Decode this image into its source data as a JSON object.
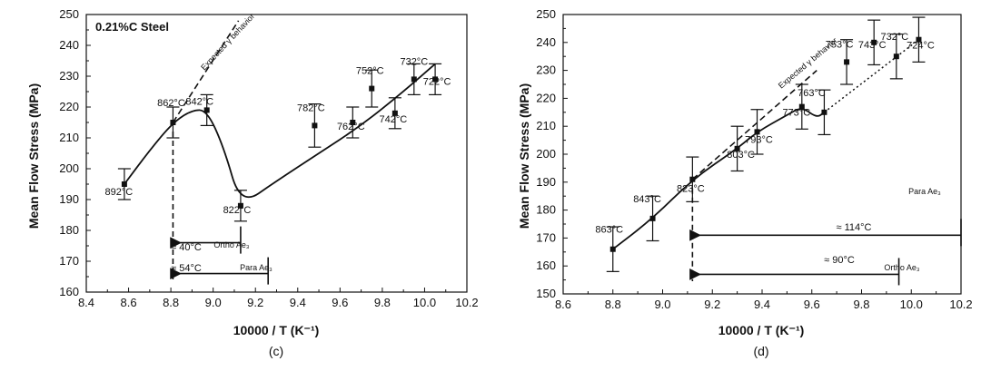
{
  "chart_data": [
    {
      "type": "line",
      "panel_label": "(c)",
      "title": "0.21%C Steel",
      "xlabel": "10000 / T (K⁻¹)",
      "ylabel": "Mean Flow Stress (MPa)",
      "xlim": [
        8.4,
        10.2
      ],
      "ylim": [
        160,
        250
      ],
      "xticks": [
        "8.4",
        "8.6",
        "8.8",
        "9.0",
        "9.2",
        "9.4",
        "9.6",
        "9.8",
        "10.0",
        "10.2"
      ],
      "yticks": [
        "160",
        "170",
        "180",
        "190",
        "200",
        "210",
        "220",
        "230",
        "240",
        "250"
      ],
      "grid": false,
      "series": [
        {
          "points": [
            {
              "x": 8.58,
              "y": 195,
              "err": 5,
              "label": "892°C"
            },
            {
              "x": 8.81,
              "y": 215,
              "err": 5,
              "label": "862°C"
            },
            {
              "x": 8.97,
              "y": 219,
              "err": 5,
              "label": "842°C"
            },
            {
              "x": 9.13,
              "y": 188,
              "err": 5,
              "label": "822°C"
            },
            {
              "x": 9.48,
              "y": 214,
              "err": 7,
              "label": "782°C"
            },
            {
              "x": 9.66,
              "y": 215,
              "err": 5,
              "label": "762°C"
            },
            {
              "x": 9.75,
              "y": 226,
              "err": 6,
              "label": "752°C"
            },
            {
              "x": 9.86,
              "y": 218,
              "err": 5,
              "label": "742°C"
            },
            {
              "x": 9.95,
              "y": 229,
              "err": 5,
              "label": "732°C"
            },
            {
              "x": 10.05,
              "y": 229,
              "err": 5,
              "label": "722°C"
            }
          ],
          "fit": [
            [
              8.58,
              195
            ],
            [
              8.7,
              206
            ],
            [
              8.81,
              215
            ],
            [
              8.9,
              219
            ],
            [
              8.97,
              219
            ],
            [
              9.05,
              207
            ],
            [
              9.13,
              188
            ],
            [
              9.3,
              196
            ],
            [
              9.5,
              205
            ],
            [
              9.7,
              214
            ],
            [
              9.9,
              225
            ],
            [
              10.05,
              234
            ]
          ]
        }
      ],
      "expected_line": {
        "label": "Expected γ behavior",
        "points": [
          [
            8.81,
            215
          ],
          [
            9.12,
            248
          ]
        ]
      },
      "vertical_marker": {
        "x": 8.81
      },
      "annotations": [
        {
          "text": "≈ 40°C",
          "note": "Ortho Ae₃",
          "x_from": 9.13,
          "x_to": 8.81,
          "y": 176
        },
        {
          "text": "≈ 54°C",
          "note": "Para Ae₃",
          "x_from": 9.26,
          "x_to": 8.81,
          "y": 166
        }
      ]
    },
    {
      "type": "line",
      "panel_label": "(d)",
      "title": "",
      "xlabel": "10000 / T (K⁻¹)",
      "ylabel": "Mean Flow Stress (MPa)",
      "xlim": [
        8.6,
        10.2
      ],
      "ylim": [
        150,
        250
      ],
      "xticks": [
        "8.6",
        "8.8",
        "9.0",
        "9.2",
        "9.4",
        "9.6",
        "9.8",
        "10.0",
        "10.2"
      ],
      "yticks": [
        "150",
        "160",
        "170",
        "180",
        "190",
        "200",
        "210",
        "220",
        "230",
        "240",
        "250"
      ],
      "grid": false,
      "series": [
        {
          "points": [
            {
              "x": 8.8,
              "y": 166,
              "err": 8,
              "label": "863°C"
            },
            {
              "x": 8.96,
              "y": 177,
              "err": 8,
              "label": "843°C"
            },
            {
              "x": 9.12,
              "y": 191,
              "err": 8,
              "label": "823°C"
            },
            {
              "x": 9.3,
              "y": 202,
              "err": 8,
              "label": "803°C"
            },
            {
              "x": 9.38,
              "y": 208,
              "err": 8,
              "label": "793°C"
            },
            {
              "x": 9.56,
              "y": 217,
              "err": 8,
              "label": "773°C"
            },
            {
              "x": 9.65,
              "y": 215,
              "err": 8,
              "label": "763°C"
            },
            {
              "x": 9.74,
              "y": 233,
              "err": 8,
              "label": "753°C"
            },
            {
              "x": 9.85,
              "y": 240,
              "err": 8,
              "label": "743°C"
            },
            {
              "x": 9.94,
              "y": 235,
              "err": 8,
              "label": "732°C"
            },
            {
              "x": 10.03,
              "y": 241,
              "err": 8,
              "label": "724°C"
            }
          ],
          "fit": [
            [
              8.8,
              166
            ],
            [
              8.96,
              177
            ],
            [
              9.12,
              191
            ],
            [
              9.3,
              202
            ],
            [
              9.38,
              208
            ],
            [
              9.5,
              214
            ],
            [
              9.56,
              217
            ],
            [
              9.62,
              213
            ],
            [
              9.65,
              215
            ]
          ],
          "dotted": [
            [
              9.65,
              215
            ],
            [
              10.03,
              241
            ]
          ]
        }
      ],
      "expected_line": {
        "label": "Expected γ behavior",
        "points": [
          [
            9.12,
            191
          ],
          [
            9.62,
            230
          ]
        ]
      },
      "vertical_marker": {
        "x": 9.12
      },
      "annotations": [
        {
          "text": "≈ 114°C",
          "note": "Para Ae₃",
          "x_from": 10.2,
          "x_to": 9.12,
          "y": 171
        },
        {
          "text": "≈ 90°C",
          "note": "Ortho Ae₃",
          "x_from": 9.95,
          "x_to": 9.12,
          "y": 157
        }
      ]
    }
  ]
}
